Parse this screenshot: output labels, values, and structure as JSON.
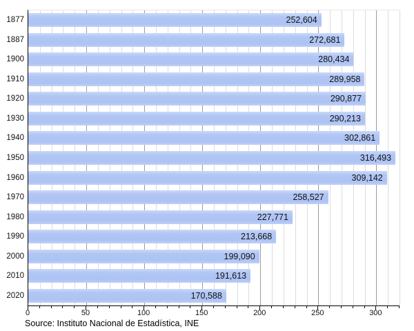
{
  "chart_data": {
    "type": "bar",
    "orientation": "horizontal",
    "title": "",
    "categories": [
      "1877",
      "1887",
      "1900",
      "1910",
      "1920",
      "1930",
      "1940",
      "1950",
      "1960",
      "1970",
      "1980",
      "1990",
      "2000",
      "2010",
      "2020"
    ],
    "values": [
      252604,
      272681,
      280434,
      289958,
      290877,
      290213,
      302861,
      316493,
      309142,
      258527,
      227771,
      213668,
      199090,
      191613,
      170588
    ],
    "value_labels": [
      "252,604",
      "272,681",
      "280,434",
      "289,958",
      "290,877",
      "290,213",
      "302,861",
      "316,493",
      "309,142",
      "258,527",
      "227,771",
      "213,668",
      "199,090",
      "191,613",
      "170,588"
    ],
    "x_axis": {
      "tick_labels": [
        "0",
        "50",
        "100",
        "150",
        "200",
        "250",
        "300"
      ],
      "major_ticks": [
        0,
        50,
        100,
        150,
        200,
        250,
        300
      ],
      "minor_step": 10,
      "min": 0,
      "max": 320
    },
    "grid": "vertical, minor every 10, major every 50",
    "legend": "none",
    "source": "Source: Instituto Nacional de Estadística, INE"
  },
  "colors": {
    "bar_fill": "#adc3f3",
    "bar_highlight": "#cbd8fa",
    "major_gridline": "#9a9a9a",
    "minor_gridline": "#dcdcdc",
    "axis": "#000000",
    "text": "#111111",
    "background": "#ffffff"
  }
}
